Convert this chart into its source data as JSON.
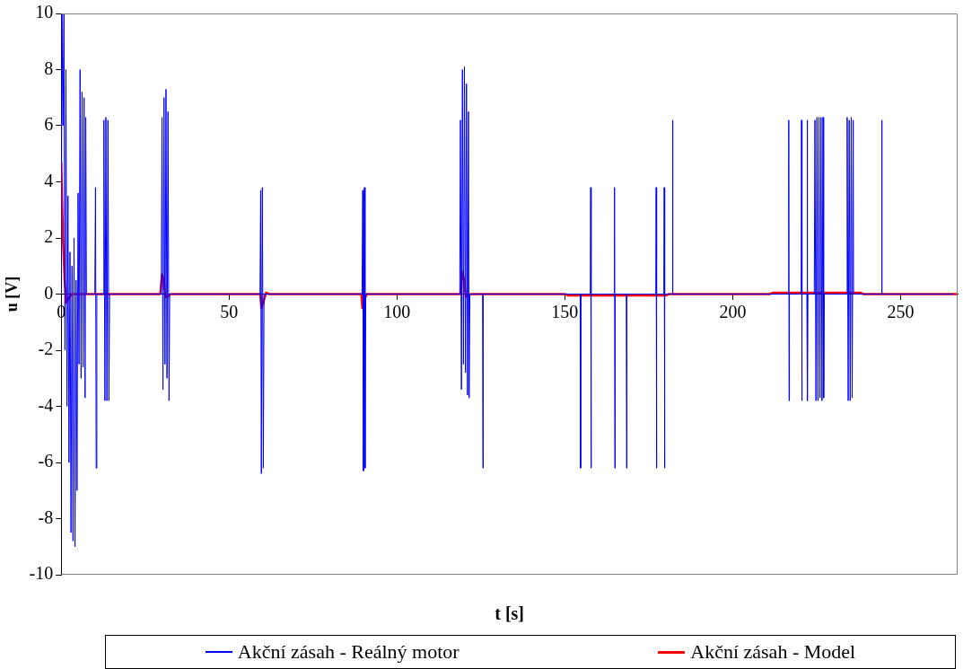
{
  "chart_data": {
    "type": "line",
    "xlabel": "t [s]",
    "ylabel": "u [V]",
    "xlim": [
      0,
      267
    ],
    "xticks": [
      0,
      50,
      100,
      150,
      200,
      250
    ],
    "ylim": [
      -10,
      10
    ],
    "yticks": [
      -10,
      -8,
      -6,
      -4,
      -2,
      0,
      2,
      4,
      6,
      8,
      10
    ],
    "grid": false,
    "legend": "bottom",
    "series": [
      {
        "name": "Akční zásah - Reálný motor",
        "color": "#0000ff",
        "x": [
          0,
          0.2,
          0.5,
          0.8,
          1.1,
          1.4,
          1.7,
          2.0,
          2.3,
          2.6,
          2.9,
          3.2,
          3.5,
          3.8,
          4.1,
          4.4,
          4.7,
          5.0,
          5.3,
          5.6,
          5.9,
          6.2,
          6.5,
          6.8,
          7.1,
          7.3,
          7.5,
          10.0,
          10.2,
          10.4,
          10.6,
          12.5,
          12.7,
          13.0,
          13.3,
          13.6,
          13.9,
          14.2,
          14.4,
          29.8,
          30.0,
          30.3,
          30.6,
          30.9,
          31.2,
          31.5,
          31.8,
          32.1,
          32.3,
          59.2,
          59.4,
          59.6,
          59.9,
          60.2,
          60.4,
          89.6,
          89.8,
          90.0,
          90.3,
          90.5,
          90.7,
          118.7,
          118.9,
          119.2,
          119.5,
          119.8,
          120.1,
          120.4,
          120.7,
          121.0,
          121.3,
          121.5,
          121.7,
          125.5,
          125.6,
          125.7,
          154.6,
          154.7,
          154.8,
          157.6,
          157.7,
          157.8,
          157.9,
          164.7,
          164.8,
          164.9,
          165.0,
          168.3,
          168.4,
          168.5,
          177.1,
          177.2,
          177.3,
          177.4,
          179.5,
          179.6,
          179.7,
          179.8,
          182.0,
          182.1,
          182.2,
          216.6,
          216.7,
          216.8,
          216.9,
          220.4,
          220.5,
          220.6,
          220.7,
          222.1,
          222.2,
          222.3,
          222.4,
          224.3,
          224.5,
          224.8,
          225.1,
          225.4,
          225.7,
          226.0,
          226.3,
          226.6,
          226.9,
          227.1,
          227.3,
          233.9,
          234.1,
          234.4,
          234.7,
          235.0,
          235.3,
          235.6,
          235.9,
          236.0,
          244.3,
          244.4,
          244.5,
          266
        ],
        "values": [
          0,
          10,
          6,
          10,
          -2,
          8,
          -4,
          3.5,
          -6,
          1.5,
          -8.5,
          1,
          -8.8,
          2,
          -9,
          0.5,
          -7,
          3.6,
          -2.5,
          8,
          -3,
          7.2,
          -2.6,
          7,
          -3.7,
          6.3,
          0,
          0,
          3.8,
          -6.2,
          0,
          0,
          6.2,
          -3.8,
          6.3,
          -3.8,
          6.2,
          -3.8,
          0,
          0,
          6.3,
          -3.4,
          7,
          -2.5,
          7.3,
          -3,
          6.5,
          -3.8,
          0,
          0,
          3.7,
          -6.4,
          3.8,
          -6.2,
          0,
          0,
          3.7,
          -6.3,
          3.8,
          -6.2,
          0,
          0,
          6.2,
          -3.4,
          8,
          -2.5,
          8.1,
          -2.8,
          7.5,
          -3.6,
          6.5,
          -3.7,
          0,
          0,
          -6.2,
          0,
          0,
          -6.2,
          0,
          0,
          3.8,
          -6.2,
          0,
          0,
          3.8,
          -6.2,
          0,
          0,
          -6.2,
          0,
          0,
          3.8,
          -6.2,
          0,
          0,
          3.8,
          -6.2,
          0,
          0,
          6.2,
          0,
          0,
          6.2,
          -3.8,
          0,
          0,
          6.2,
          -3.8,
          0,
          0,
          6.2,
          -3.8,
          0,
          0,
          6.2,
          -3.8,
          6.3,
          -3.8,
          6.3,
          -3.7,
          6.3,
          -3.8,
          6.3,
          -3.7,
          0,
          0,
          6.3,
          -3.8,
          6.2,
          -3.8,
          6.3,
          -3.7,
          6.2,
          0,
          0,
          6.2,
          0,
          0
        ]
      },
      {
        "name": "Akční zásah - Model",
        "color": "#ff0000",
        "x": [
          0,
          0.5,
          1.0,
          1.5,
          2.2,
          3,
          29.5,
          30,
          30.6,
          31,
          31.7,
          32.5,
          59.3,
          59.6,
          60.2,
          61,
          62,
          89.4,
          89.7,
          90.3,
          91,
          119,
          119.4,
          120,
          120.5,
          121.3,
          122,
          150,
          151,
          180,
          181,
          211,
          212,
          238,
          239,
          267
        ],
        "values": [
          4.7,
          2,
          0.5,
          -0.3,
          -0.15,
          0,
          0,
          0.7,
          0.5,
          -0.1,
          -0.1,
          0,
          0,
          -0.5,
          -0.3,
          0.05,
          0,
          0,
          -0.5,
          -0.2,
          0,
          0,
          0.8,
          0.5,
          -0.1,
          -0.05,
          0,
          0,
          -0.05,
          -0.05,
          0,
          0,
          0.05,
          0.05,
          0,
          0
        ]
      }
    ]
  }
}
